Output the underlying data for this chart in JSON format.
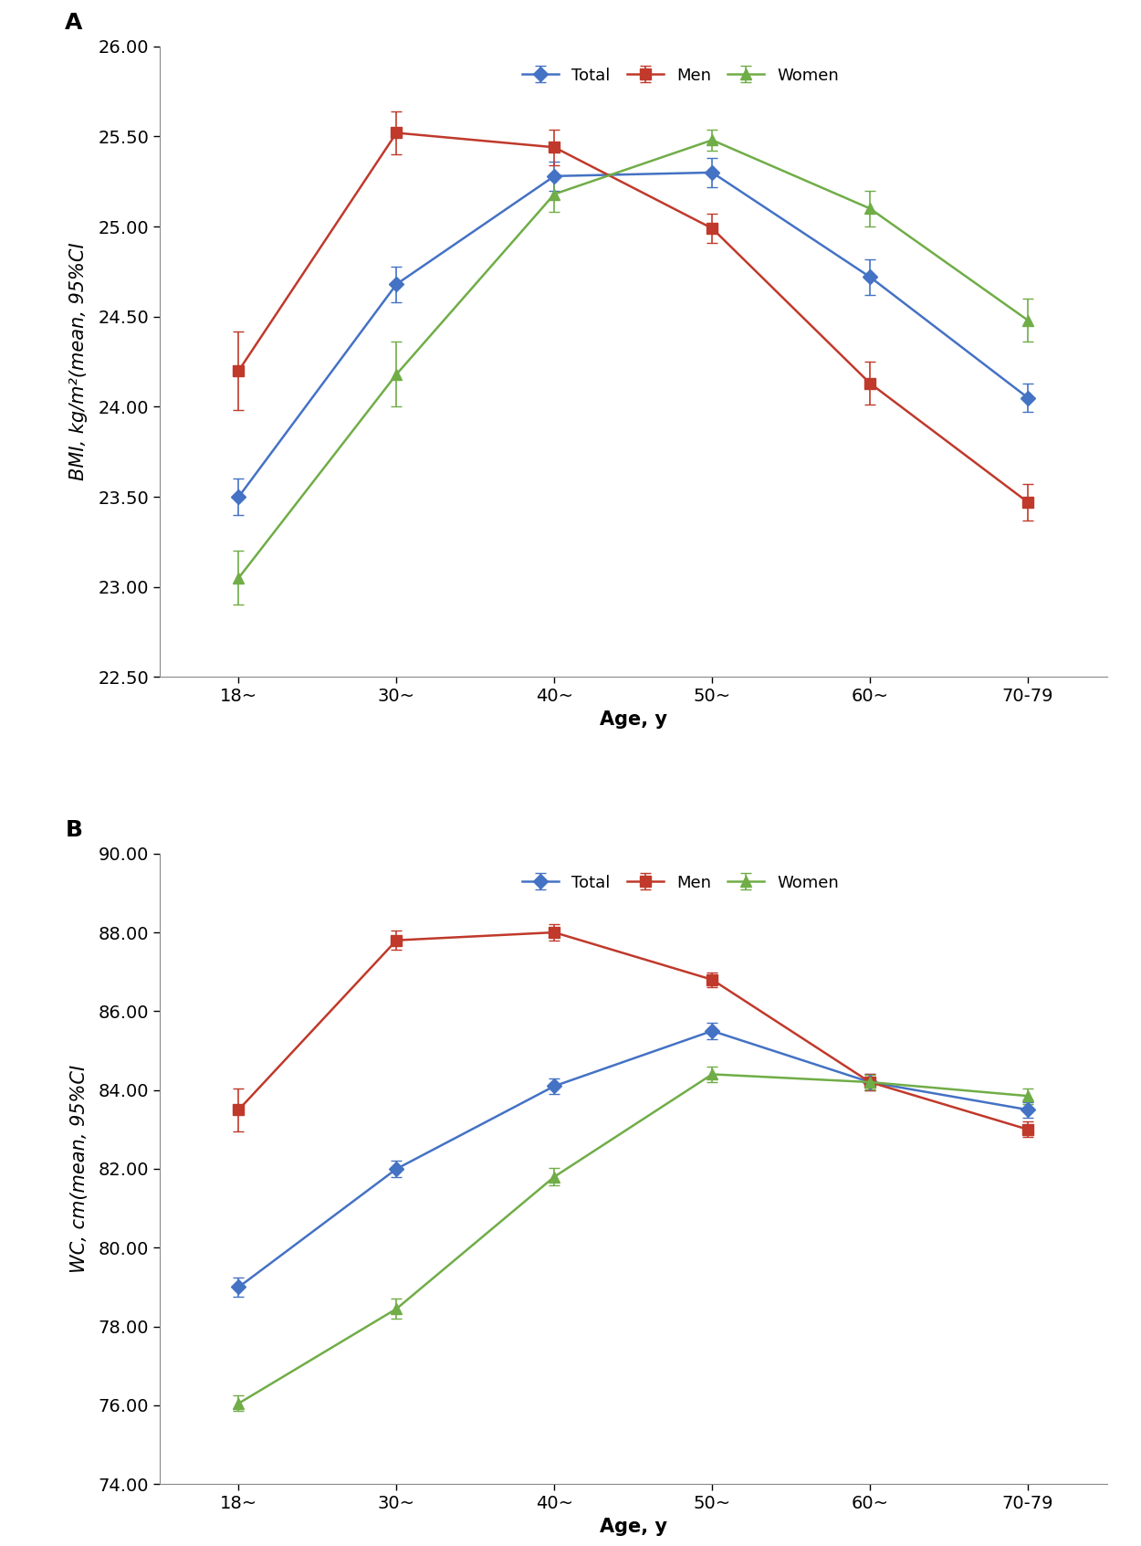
{
  "panel_A": {
    "title_label": "A",
    "ylabel_part1": "BMI, kg/m²(mean, 95%",
    "ylabel_ci": "CI",
    "xlabel": "Age, y",
    "x_labels": [
      "18~",
      "30~",
      "40~",
      "50~",
      "60~",
      "70-79"
    ],
    "ylim": [
      22.5,
      26.0
    ],
    "yticks": [
      22.5,
      23.0,
      23.5,
      24.0,
      24.5,
      25.0,
      25.5,
      26.0
    ],
    "series": {
      "Total": {
        "color": "#4472C4",
        "marker": "D",
        "values": [
          23.5,
          24.68,
          25.28,
          25.3,
          24.72,
          24.05
        ],
        "yerr": [
          0.1,
          0.1,
          0.08,
          0.08,
          0.1,
          0.08
        ]
      },
      "Men": {
        "color": "#C0392B",
        "marker": "s",
        "values": [
          24.2,
          25.52,
          25.44,
          24.99,
          24.13,
          23.47
        ],
        "yerr": [
          0.22,
          0.12,
          0.1,
          0.08,
          0.12,
          0.1
        ]
      },
      "Women": {
        "color": "#70AD47",
        "marker": "^",
        "values": [
          23.05,
          24.18,
          25.18,
          25.48,
          25.1,
          24.48
        ],
        "yerr": [
          0.15,
          0.18,
          0.1,
          0.06,
          0.1,
          0.12
        ]
      }
    }
  },
  "panel_B": {
    "title_label": "B",
    "ylabel_part1": "WC, cm(mean, 95%",
    "ylabel_ci": "CI",
    "xlabel": "Age, y",
    "x_labels": [
      "18~",
      "30~",
      "40~",
      "50~",
      "60~",
      "70-79"
    ],
    "ylim": [
      74.0,
      90.0
    ],
    "yticks": [
      74.0,
      76.0,
      78.0,
      80.0,
      82.0,
      84.0,
      86.0,
      88.0,
      90.0
    ],
    "series": {
      "Total": {
        "color": "#4472C4",
        "marker": "D",
        "values": [
          79.0,
          82.0,
          84.1,
          85.5,
          84.2,
          83.5
        ],
        "yerr": [
          0.25,
          0.2,
          0.2,
          0.2,
          0.2,
          0.2
        ]
      },
      "Men": {
        "color": "#C0392B",
        "marker": "s",
        "values": [
          83.5,
          87.8,
          88.0,
          86.8,
          84.2,
          83.0
        ],
        "yerr": [
          0.55,
          0.25,
          0.2,
          0.18,
          0.2,
          0.2
        ]
      },
      "Women": {
        "color": "#70AD47",
        "marker": "^",
        "values": [
          76.05,
          78.45,
          81.8,
          84.4,
          84.2,
          83.85
        ],
        "yerr": [
          0.2,
          0.25,
          0.22,
          0.2,
          0.18,
          0.2
        ]
      }
    }
  },
  "legend_order": [
    "Total",
    "Men",
    "Women"
  ],
  "line_width": 1.8,
  "marker_size": 8,
  "capsize": 4,
  "elinewidth": 1.2,
  "font_size_ticks": 14,
  "font_size_label": 15,
  "font_size_legend": 13,
  "font_size_panel_label": 18,
  "spine_color": "#888888"
}
